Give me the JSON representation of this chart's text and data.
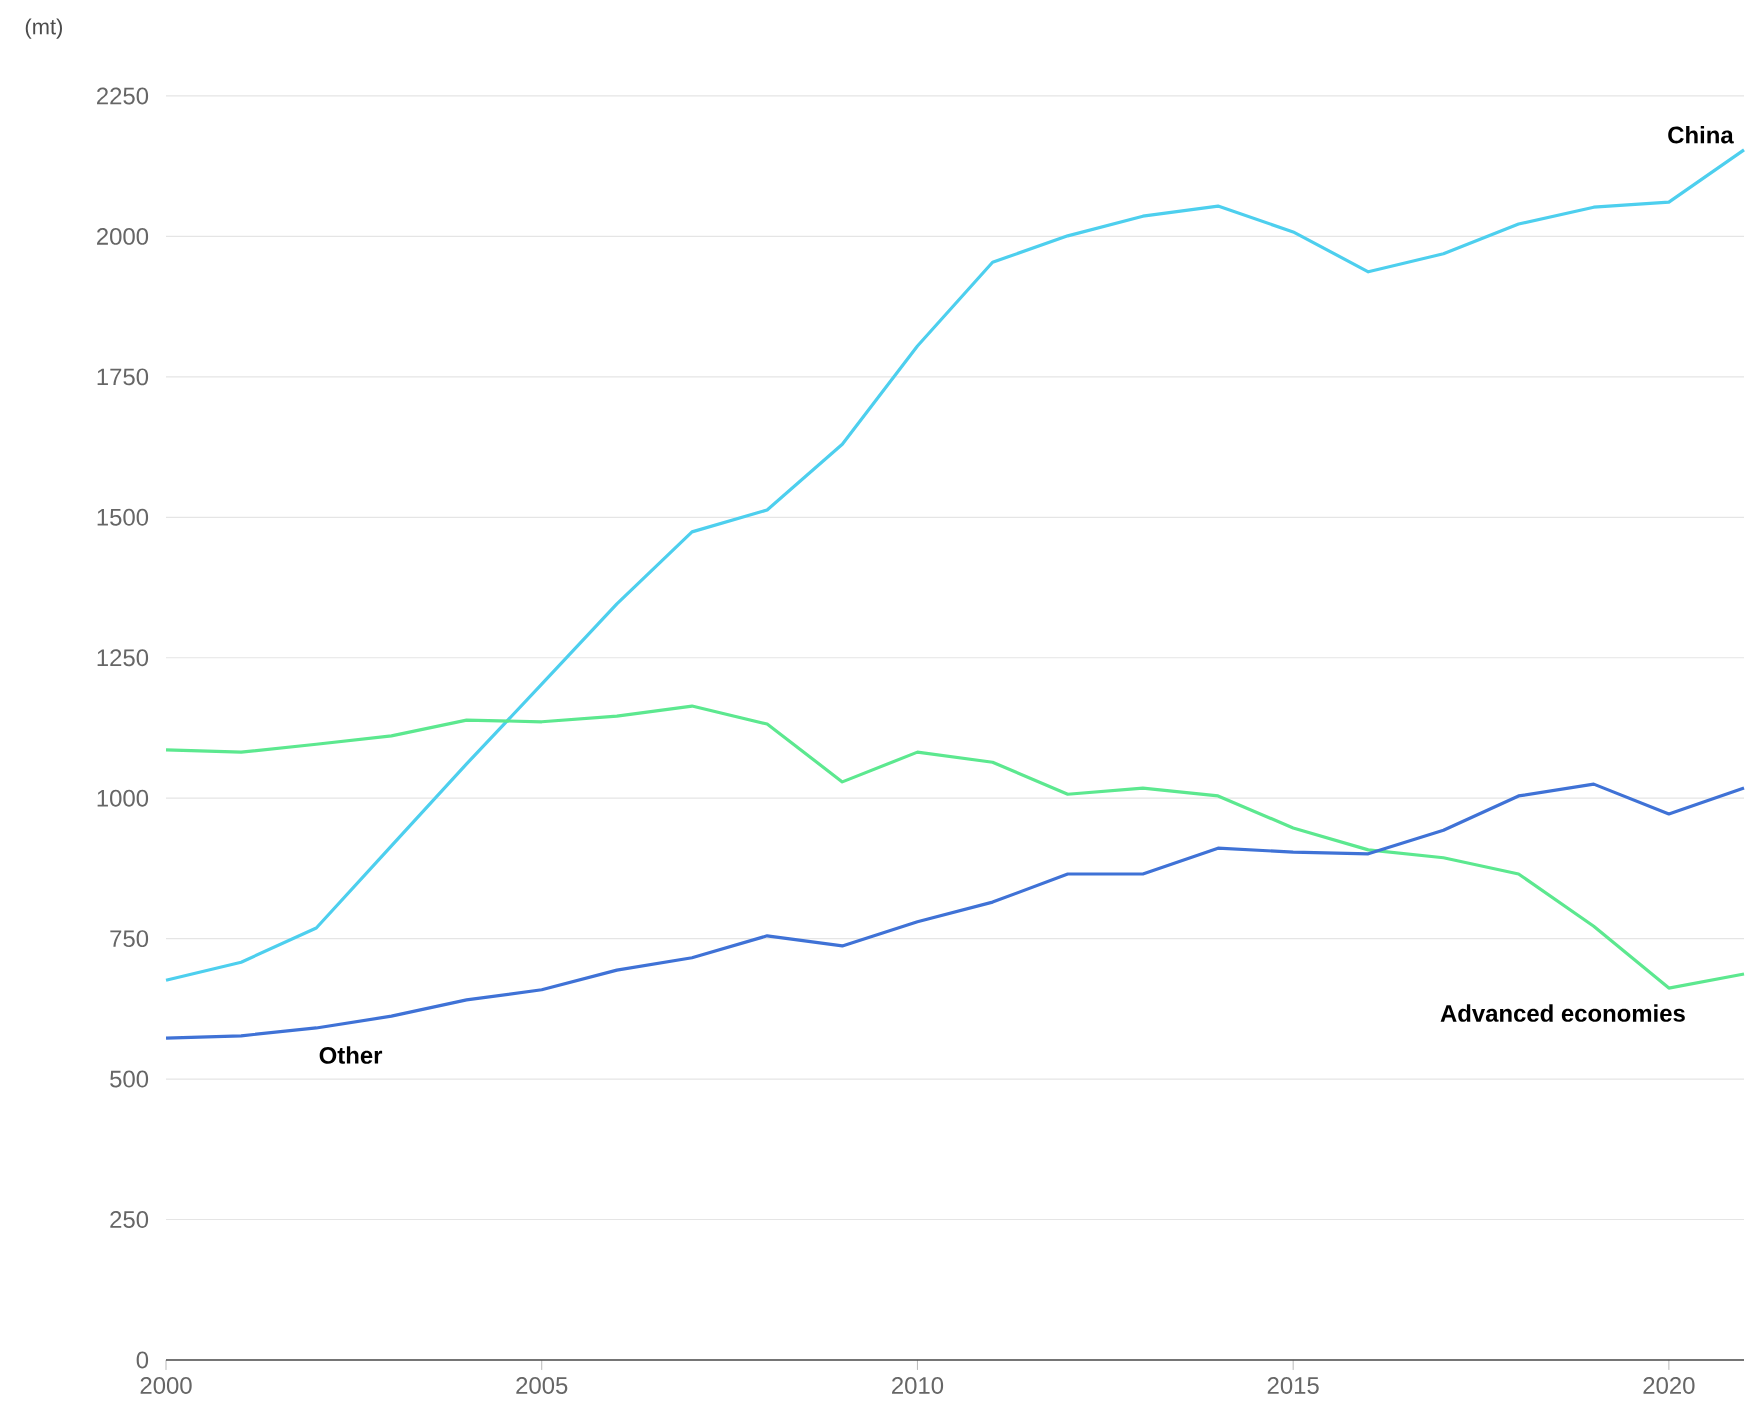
{
  "chart_data": {
    "type": "line",
    "ylabel": "(mt)",
    "x": [
      2000,
      2001,
      2002,
      2003,
      2004,
      2005,
      2006,
      2007,
      2008,
      2009,
      2010,
      2011,
      2012,
      2013,
      2014,
      2015,
      2016,
      2017,
      2018,
      2019,
      2020,
      2021
    ],
    "series": [
      {
        "name": "China",
        "color": "#4dcfee",
        "values": [
          676,
          708,
          769,
          915,
          1061,
          1203,
          1346,
          1474,
          1513,
          1630,
          1805,
          1954,
          2001,
          2036,
          2054,
          2008,
          1937,
          1969,
          2022,
          2052,
          2061,
          2154
        ]
      },
      {
        "name": "Advanced economies",
        "color": "#5ce88f",
        "values": [
          1086,
          1082,
          1096,
          1111,
          1139,
          1136,
          1146,
          1164,
          1132,
          1029,
          1082,
          1064,
          1007,
          1018,
          1004,
          947,
          908,
          894,
          865,
          772,
          662,
          687
        ]
      },
      {
        "name": "Other",
        "color": "#3f72d6",
        "values": [
          573,
          577,
          591,
          612,
          641,
          659,
          694,
          716,
          755,
          737,
          780,
          815,
          865,
          865,
          911,
          904,
          901,
          943,
          1004,
          1025,
          972,
          1018
        ]
      }
    ],
    "xlim": [
      2000,
      2021
    ],
    "xticks": [
      2000,
      2005,
      2010,
      2015,
      2020
    ],
    "ylim": [
      0,
      2250
    ],
    "yticks": [
      0,
      250,
      500,
      750,
      1000,
      1250,
      1500,
      1750,
      2000,
      2250
    ],
    "grid": "y",
    "legend": false,
    "marker": "none",
    "line_style": "solid"
  }
}
